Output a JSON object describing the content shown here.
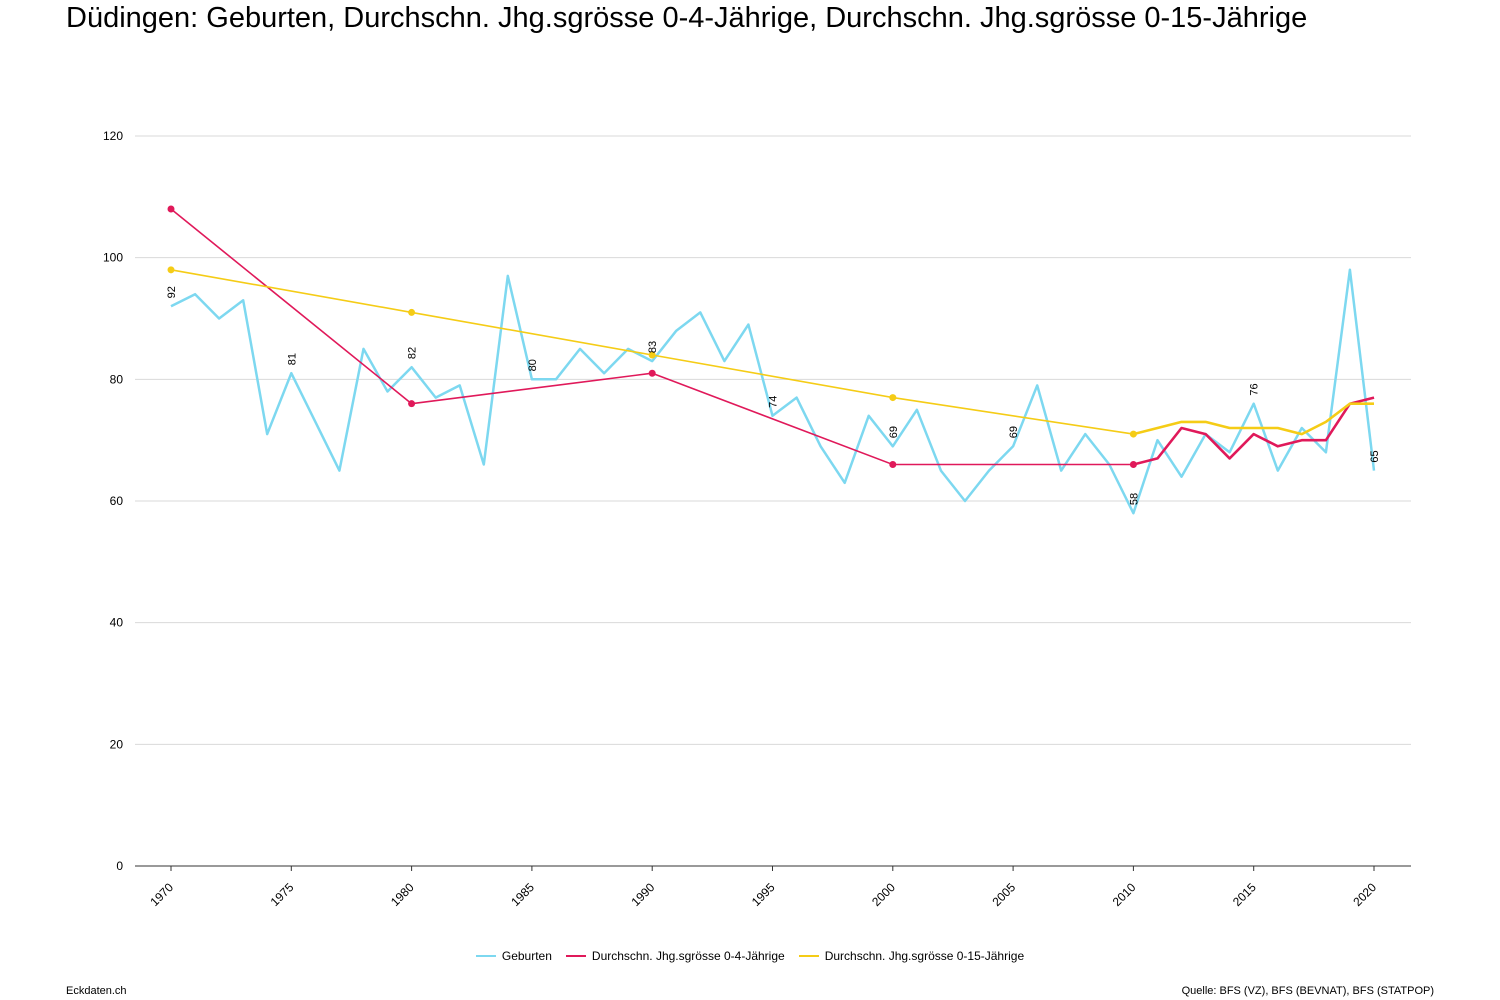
{
  "header": {
    "title": "Düdingen: Geburten, Durchschn. Jhg.sgrösse 0-4-Jährige, Durchschn. Jhg.sgrösse 0-15-Jährige"
  },
  "footer": {
    "left": "Eckdaten.ch",
    "right": "Quelle: BFS (VZ), BFS (BEVNAT), BFS (STATPOP)"
  },
  "chart_data": {
    "type": "line",
    "title": "Düdingen: Geburten, Durchschn. Jhg.sgrösse 0-4-Jährige, Durchschn. Jhg.sgrösse 0-15-Jährige",
    "xlabel": "",
    "ylabel": "",
    "ylim": [
      0,
      120
    ],
    "xlim": [
      1970,
      2020
    ],
    "yticks": [
      0,
      20,
      40,
      60,
      80,
      100,
      120
    ],
    "xticks": [
      1970,
      1975,
      1980,
      1985,
      1990,
      1995,
      2000,
      2005,
      2010,
      2015,
      2020
    ],
    "grid": true,
    "legend_position": "bottom",
    "series": [
      {
        "name": "Geburten",
        "color": "#7dd8f0",
        "x": [
          1970,
          1971,
          1972,
          1973,
          1974,
          1975,
          1976,
          1977,
          1978,
          1979,
          1980,
          1981,
          1982,
          1983,
          1984,
          1985,
          1986,
          1987,
          1988,
          1989,
          1990,
          1991,
          1992,
          1993,
          1994,
          1995,
          1996,
          1997,
          1998,
          1999,
          2000,
          2001,
          2002,
          2003,
          2004,
          2005,
          2006,
          2007,
          2008,
          2009,
          2010,
          2011,
          2012,
          2013,
          2014,
          2015,
          2016,
          2017,
          2018,
          2019,
          2020
        ],
        "y": [
          92,
          94,
          90,
          93,
          71,
          81,
          73,
          65,
          85,
          78,
          82,
          77,
          79,
          66,
          97,
          80,
          80,
          85,
          81,
          85,
          83,
          88,
          91,
          83,
          89,
          74,
          77,
          69,
          63,
          74,
          69,
          75,
          65,
          60,
          65,
          69,
          79,
          65,
          71,
          66,
          58,
          70,
          64,
          71,
          68,
          76,
          65,
          72,
          68,
          98,
          65
        ],
        "labeled_points": [
          {
            "x": 1970,
            "y": 92,
            "label": "92"
          },
          {
            "x": 1975,
            "y": 81,
            "label": "81"
          },
          {
            "x": 1980,
            "y": 82,
            "label": "82"
          },
          {
            "x": 1985,
            "y": 80,
            "label": "80"
          },
          {
            "x": 1990,
            "y": 83,
            "label": "83"
          },
          {
            "x": 1995,
            "y": 74,
            "label": "74"
          },
          {
            "x": 2000,
            "y": 69,
            "label": "69"
          },
          {
            "x": 2005,
            "y": 69,
            "label": "69"
          },
          {
            "x": 2010,
            "y": 58,
            "label": "58"
          },
          {
            "x": 2015,
            "y": 76,
            "label": "76"
          },
          {
            "x": 2020,
            "y": 65,
            "label": "65"
          }
        ]
      },
      {
        "name": "Durchschn. Jhg.sgrösse 0-4-Jährige",
        "color": "#e0195a",
        "x": [
          1970,
          1980,
          1990,
          2000,
          2010,
          2011,
          2012,
          2013,
          2014,
          2015,
          2016,
          2017,
          2018,
          2019,
          2020
        ],
        "y": [
          108,
          76,
          81,
          66,
          66,
          67,
          72,
          71,
          67,
          71,
          69,
          70,
          70,
          76,
          77
        ],
        "markers": [
          1970,
          1980,
          1990,
          2000,
          2010
        ]
      },
      {
        "name": "Durchschn. Jhg.sgrösse 0-15-Jährige",
        "color": "#f5cc16",
        "x": [
          1970,
          1980,
          1990,
          2000,
          2010,
          2011,
          2012,
          2013,
          2014,
          2015,
          2016,
          2017,
          2018,
          2019,
          2020
        ],
        "y": [
          98,
          91,
          84,
          77,
          71,
          72,
          73,
          73,
          72,
          72,
          72,
          71,
          73,
          76,
          76
        ],
        "markers": [
          1970,
          1980,
          1990,
          2000,
          2010
        ]
      }
    ]
  }
}
